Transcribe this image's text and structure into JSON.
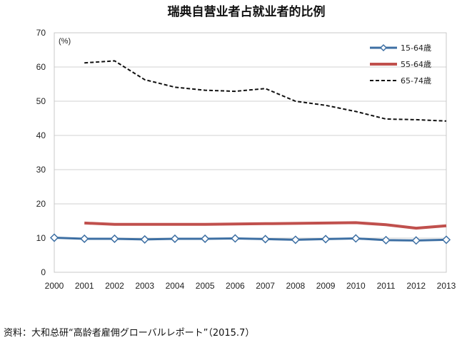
{
  "chart_data": {
    "type": "line",
    "title": "瑞典自营业者占就业者的比例",
    "y_unit": "(%)",
    "ylim": [
      0,
      70
    ],
    "yticks": [
      0,
      10,
      20,
      30,
      40,
      50,
      60,
      70
    ],
    "grid": "horizontal",
    "legend_position": "top-right",
    "categories": [
      "2000",
      "2001",
      "2002",
      "2003",
      "2004",
      "2005",
      "2006",
      "2007",
      "2008",
      "2009",
      "2010",
      "2011",
      "2012",
      "2013"
    ],
    "series": [
      {
        "name": "15-64歳",
        "color": "#3d6fa3",
        "marker": "diamond",
        "values": [
          10.1,
          9.8,
          9.8,
          9.6,
          9.8,
          9.8,
          9.9,
          9.7,
          9.5,
          9.7,
          9.9,
          9.4,
          9.3,
          9.5
        ]
      },
      {
        "name": "55-64歳",
        "color": "#c0504d",
        "marker": "none",
        "values": [
          null,
          14.4,
          14.0,
          14.0,
          14.0,
          14.0,
          14.1,
          14.2,
          14.3,
          14.4,
          14.5,
          13.9,
          12.9,
          13.6
        ]
      },
      {
        "name": "65-74歳",
        "color": "#111111",
        "marker": "none",
        "dash": "dashed",
        "values": [
          null,
          61.2,
          61.8,
          56.3,
          54.1,
          53.2,
          52.9,
          53.7,
          50.0,
          48.8,
          47.0,
          44.8,
          44.6,
          44.2
        ]
      }
    ]
  },
  "source": "资料：大和总研“高龄者雇佣グローバルレポート”（2015.7）"
}
